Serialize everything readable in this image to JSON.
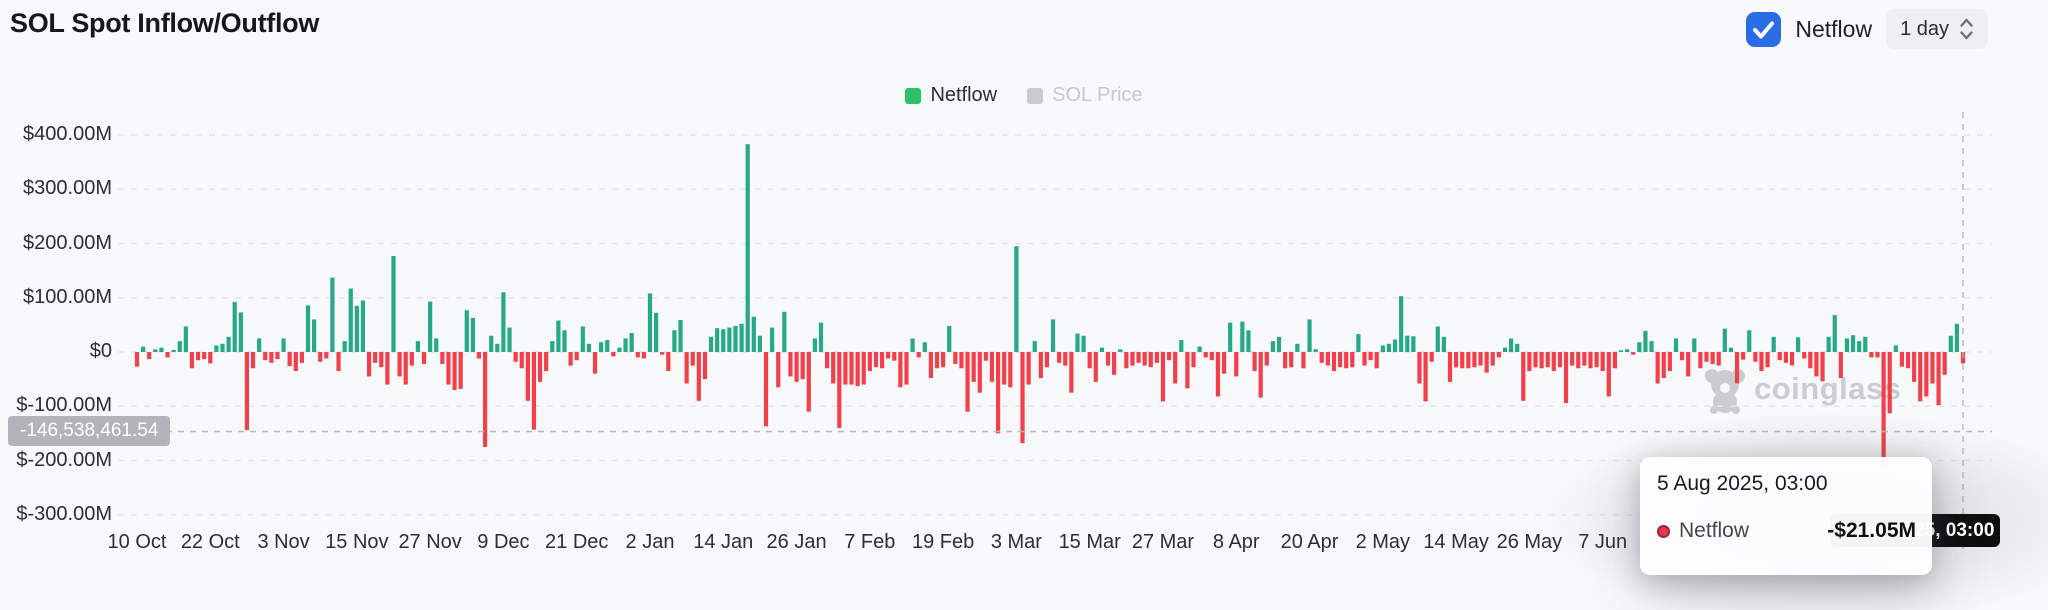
{
  "header": {
    "title": "SOL Spot Inflow/Outflow",
    "netflow_checkbox_label": "Netflow",
    "netflow_checkbox_checked": true,
    "checkbox_color": "#2a6ce6",
    "interval_selector_value": "1 day"
  },
  "legend": [
    {
      "label": "Netflow",
      "color": "#2bc169",
      "active": true
    },
    {
      "label": "SOL Price",
      "color": "#c9cbcf",
      "active": false
    }
  ],
  "watermark": {
    "text": "coinglass"
  },
  "crosshair": {
    "y_label": "-146,538,461.54",
    "value_m": -146.538461,
    "x_label": "5 Aug 2025, 03:00"
  },
  "tooltip": {
    "title": "5 Aug 2025, 03:00",
    "rows": [
      {
        "name": "Netflow",
        "value": "-$21.05M",
        "dot_color": "#e5374d"
      }
    ]
  },
  "chart_data": {
    "type": "bar",
    "title": "SOL Spot Inflow/Outflow",
    "series_name": "Netflow",
    "unit": "USD millions",
    "grid": true,
    "legend_position": "top-center",
    "y_ticks": [
      "$400.00M",
      "$300.00M",
      "$200.00M",
      "$100.00M",
      "$0",
      "$-100.00M",
      "$-200.00M",
      "$-300.00M"
    ],
    "y_tick_values": [
      400,
      300,
      200,
      100,
      0,
      -100,
      -200,
      -300
    ],
    "ylim": [
      -350,
      440
    ],
    "x_ticks": [
      "10 Oct",
      "22 Oct",
      "3 Nov",
      "15 Nov",
      "27 Nov",
      "9 Dec",
      "21 Dec",
      "2 Jan",
      "14 Jan",
      "26 Jan",
      "7 Feb",
      "19 Feb",
      "3 Mar",
      "15 Mar",
      "27 Mar",
      "8 Apr",
      "20 Apr",
      "2 May",
      "14 May",
      "26 May",
      "7 Jun"
    ],
    "x_tick_every": 12,
    "colors": {
      "positive": "#26a984",
      "negative": "#f1404b"
    },
    "hovered_index": 299,
    "hovered_value_m": -21.05,
    "values_m": [
      -27,
      10,
      -13,
      5,
      8,
      -10,
      4,
      20,
      47,
      -30,
      -15,
      -13,
      -21,
      12,
      15,
      28,
      92,
      73,
      -144,
      -30,
      25,
      -15,
      -20,
      -13,
      25,
      -26,
      -35,
      -20,
      86,
      60,
      -18,
      -12,
      137,
      -35,
      20,
      117,
      85,
      95,
      -45,
      -20,
      -28,
      -60,
      177,
      -45,
      -60,
      -25,
      20,
      -22,
      93,
      25,
      -22,
      -60,
      -70,
      -68,
      77,
      63,
      -12,
      -175,
      30,
      15,
      110,
      45,
      -18,
      -30,
      -90,
      -143,
      -55,
      -35,
      20,
      58,
      40,
      -25,
      -15,
      47,
      15,
      -40,
      18,
      22,
      -8,
      8,
      25,
      35,
      -10,
      -12,
      108,
      72,
      -5,
      -35,
      40,
      59,
      -58,
      -25,
      -90,
      -50,
      28,
      44,
      42,
      45,
      48,
      52,
      383,
      65,
      30,
      -137,
      45,
      -65,
      74,
      -45,
      -55,
      -50,
      -110,
      25,
      54,
      -30,
      -58,
      -140,
      -60,
      -60,
      -63,
      -60,
      -35,
      -28,
      -30,
      -12,
      -16,
      -65,
      -60,
      25,
      -10,
      18,
      -48,
      -30,
      -28,
      48,
      -22,
      -30,
      -110,
      -55,
      -75,
      -16,
      -55,
      -150,
      -60,
      -65,
      195,
      -168,
      -60,
      20,
      -48,
      -28,
      60,
      -20,
      -25,
      -75,
      34,
      30,
      -30,
      -55,
      8,
      -25,
      -42,
      5,
      -30,
      -25,
      -20,
      -25,
      -28,
      -20,
      -91,
      -15,
      -58,
      22,
      -67,
      -28,
      10,
      -10,
      -15,
      -82,
      -40,
      54,
      -45,
      56,
      40,
      -35,
      -84,
      -25,
      20,
      28,
      -30,
      -28,
      15,
      -30,
      60,
      5,
      -20,
      -25,
      -35,
      -28,
      -30,
      -28,
      33,
      -25,
      -15,
      -30,
      12,
      15,
      23,
      103,
      30,
      29,
      -58,
      -91,
      -18,
      47,
      28,
      -55,
      -28,
      -30,
      -30,
      -28,
      -25,
      -38,
      -25,
      -10,
      8,
      25,
      15,
      -90,
      -35,
      -28,
      -30,
      -28,
      -35,
      -28,
      -94,
      -25,
      -30,
      -25,
      -30,
      -28,
      -35,
      -82,
      -30,
      3,
      5,
      -5,
      18,
      39,
      20,
      -58,
      -48,
      -35,
      25,
      -15,
      -45,
      25,
      -30,
      -18,
      -22,
      -25,
      43,
      8,
      -58,
      -14,
      40,
      -18,
      -35,
      -28,
      28,
      -15,
      -20,
      -25,
      27,
      -12,
      -30,
      -45,
      -54,
      28,
      68,
      -48,
      25,
      31,
      20,
      28,
      -10,
      -10,
      -210,
      -113,
      12,
      -27,
      -30,
      -55,
      -91,
      -82,
      -58,
      -98,
      -42,
      30,
      52,
      -21.05
    ]
  }
}
